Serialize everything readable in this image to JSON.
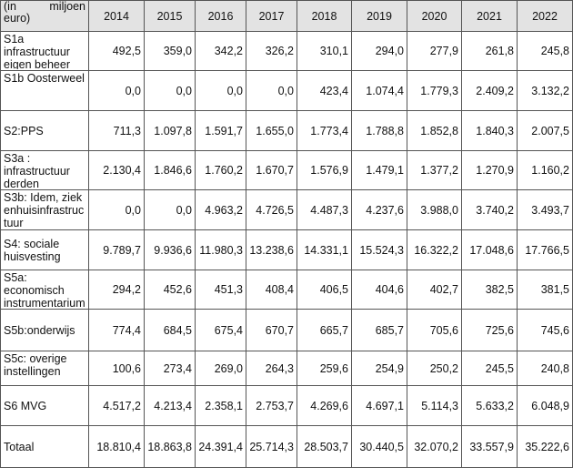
{
  "header": {
    "unit_parts": [
      "(in",
      "miljoen"
    ],
    "unit_line2": "euro)",
    "years": [
      "2014",
      "2015",
      "2016",
      "2017",
      "2018",
      "2019",
      "2020",
      "2021",
      "2022"
    ]
  },
  "rows": [
    {
      "label": "S1a infrastructuur eigen beheer",
      "values": [
        "492,5",
        "359,0",
        "342,2",
        "326,2",
        "310,1",
        "294,0",
        "277,9",
        "261,8",
        "245,8"
      ]
    },
    {
      "label": "S1b Oosterweel",
      "values": [
        "0,0",
        "0,0",
        "0,0",
        "0,0",
        "423,4",
        "1.074,4",
        "1.779,3",
        "2.409,2",
        "3.132,2"
      ]
    },
    {
      "label": "S2:PPS",
      "values": [
        "711,3",
        "1.097,8",
        "1.591,7",
        "1.655,0",
        "1.773,4",
        "1.788,8",
        "1.852,8",
        "1.840,3",
        "2.007,5"
      ]
    },
    {
      "label": "S3a : infrastructuur derden",
      "values": [
        "2.130,4",
        "1.846,6",
        "1.760,2",
        "1.670,7",
        "1.576,9",
        "1.479,1",
        "1.377,2",
        "1.270,9",
        "1.160,2"
      ]
    },
    {
      "label": "S3b: Idem, ziekenhuisinfrastructuur",
      "values": [
        "0,0",
        "0,0",
        "4.963,2",
        "4.726,5",
        "4.487,3",
        "4.237,6",
        "3.988,0",
        "3.740,2",
        "3.493,7"
      ]
    },
    {
      "label": "S4: sociale huisvesting",
      "values": [
        "9.789,7",
        "9.936,6",
        "11.980,3",
        "13.238,6",
        "14.331,1",
        "15.524,3",
        "16.322,2",
        "17.048,6",
        "17.766,5"
      ]
    },
    {
      "label": "S5a: economisch instrumentarium",
      "values": [
        "294,2",
        "452,6",
        "451,3",
        "408,4",
        "406,5",
        "404,6",
        "402,7",
        "382,5",
        "381,5"
      ]
    },
    {
      "label": "S5b:onderwijs",
      "values": [
        "774,4",
        "684,5",
        "675,4",
        "670,7",
        "665,7",
        "685,7",
        "705,6",
        "725,6",
        "745,6"
      ]
    },
    {
      "label": "S5c: overige instellingen",
      "values": [
        "100,6",
        "273,4",
        "269,0",
        "264,3",
        "259,6",
        "254,9",
        "250,2",
        "245,5",
        "240,8"
      ]
    },
    {
      "label": "S6 MVG",
      "values": [
        "4.517,2",
        "4.213,4",
        "2.358,1",
        "2.753,7",
        "4.269,6",
        "4.697,1",
        "5.114,3",
        "5.633,2",
        "6.048,9"
      ]
    },
    {
      "label": "Totaal",
      "values": [
        "18.810,4",
        "18.863,8",
        "24.391,4",
        "25.714,3",
        "28.503,7",
        "30.440,5",
        "32.070,2",
        "33.557,9",
        "35.222,6"
      ]
    }
  ]
}
